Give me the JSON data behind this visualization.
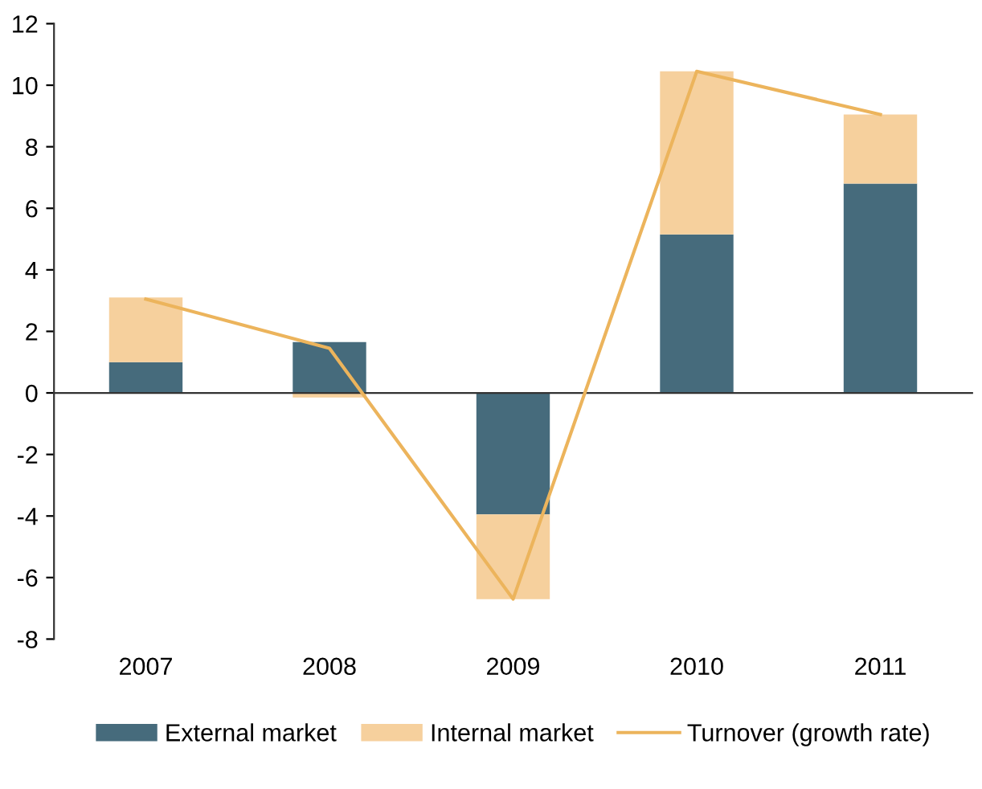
{
  "chart_data": {
    "type": "bar",
    "stacked": true,
    "categories": [
      "2007",
      "2008",
      "2009",
      "2010",
      "2011"
    ],
    "series": [
      {
        "name": "External market",
        "color": "#466b7c",
        "values": [
          1.0,
          1.65,
          -3.95,
          5.15,
          6.8
        ]
      },
      {
        "name": "Internal market",
        "color": "#f6d09d",
        "values": [
          2.1,
          -0.15,
          -2.75,
          5.3,
          2.25
        ]
      },
      {
        "name": "Turnover (growth rate)",
        "type": "line",
        "color": "#ecb45c",
        "values": [
          3.05,
          1.45,
          -6.7,
          10.45,
          9.05
        ]
      }
    ],
    "ylim": [
      -8,
      12
    ],
    "yticks": [
      -8,
      -6,
      -4,
      -2,
      0,
      2,
      4,
      6,
      8,
      10,
      12
    ],
    "legend": "bottom"
  }
}
